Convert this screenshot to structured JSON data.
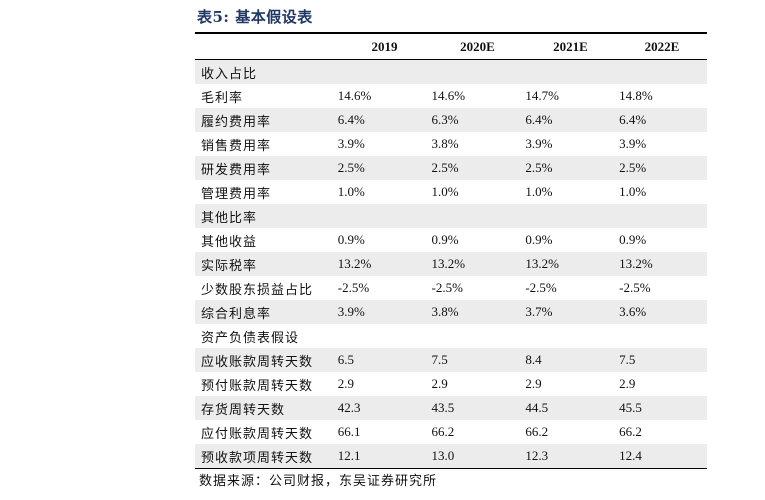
{
  "title": "表5: 基本假设表",
  "headers": [
    "",
    "2019",
    "2020E",
    "2021E",
    "2022E"
  ],
  "rows": [
    {
      "label": "收入占比",
      "values": [
        "",
        "",
        "",
        ""
      ]
    },
    {
      "label": "毛利率",
      "values": [
        "14.6%",
        "14.6%",
        "14.7%",
        "14.8%"
      ]
    },
    {
      "label": "履约费用率",
      "values": [
        "6.4%",
        "6.3%",
        "6.4%",
        "6.4%"
      ]
    },
    {
      "label": "销售费用率",
      "values": [
        "3.9%",
        "3.8%",
        "3.9%",
        "3.9%"
      ]
    },
    {
      "label": "研发费用率",
      "values": [
        "2.5%",
        "2.5%",
        "2.5%",
        "2.5%"
      ]
    },
    {
      "label": "管理费用率",
      "values": [
        "1.0%",
        "1.0%",
        "1.0%",
        "1.0%"
      ]
    },
    {
      "label": "其他比率",
      "values": [
        "",
        "",
        "",
        ""
      ]
    },
    {
      "label": "其他收益",
      "values": [
        "0.9%",
        "0.9%",
        "0.9%",
        "0.9%"
      ]
    },
    {
      "label": "实际税率",
      "values": [
        "13.2%",
        "13.2%",
        "13.2%",
        "13.2%"
      ]
    },
    {
      "label": "少数股东损益占比",
      "values": [
        "-2.5%",
        "-2.5%",
        "-2.5%",
        "-2.5%"
      ]
    },
    {
      "label": "综合利息率",
      "values": [
        "3.9%",
        "3.8%",
        "3.7%",
        "3.6%"
      ]
    },
    {
      "label": "资产负债表假设",
      "values": [
        "",
        "",
        "",
        ""
      ]
    },
    {
      "label": "应收账款周转天数",
      "values": [
        "6.5",
        "7.5",
        "8.4",
        "7.5"
      ]
    },
    {
      "label": "预付账款周转天数",
      "values": [
        "2.9",
        "2.9",
        "2.9",
        "2.9"
      ]
    },
    {
      "label": "存货周转天数",
      "values": [
        "42.3",
        "43.5",
        "44.5",
        "45.5"
      ]
    },
    {
      "label": "应付账款周转天数",
      "values": [
        "66.1",
        "66.2",
        "66.2",
        "66.2"
      ]
    },
    {
      "label": "预收款项周转天数",
      "values": [
        "12.1",
        "13.0",
        "12.3",
        "12.4"
      ]
    }
  ],
  "source": "数据来源：公司财报，东吴证券研究所"
}
